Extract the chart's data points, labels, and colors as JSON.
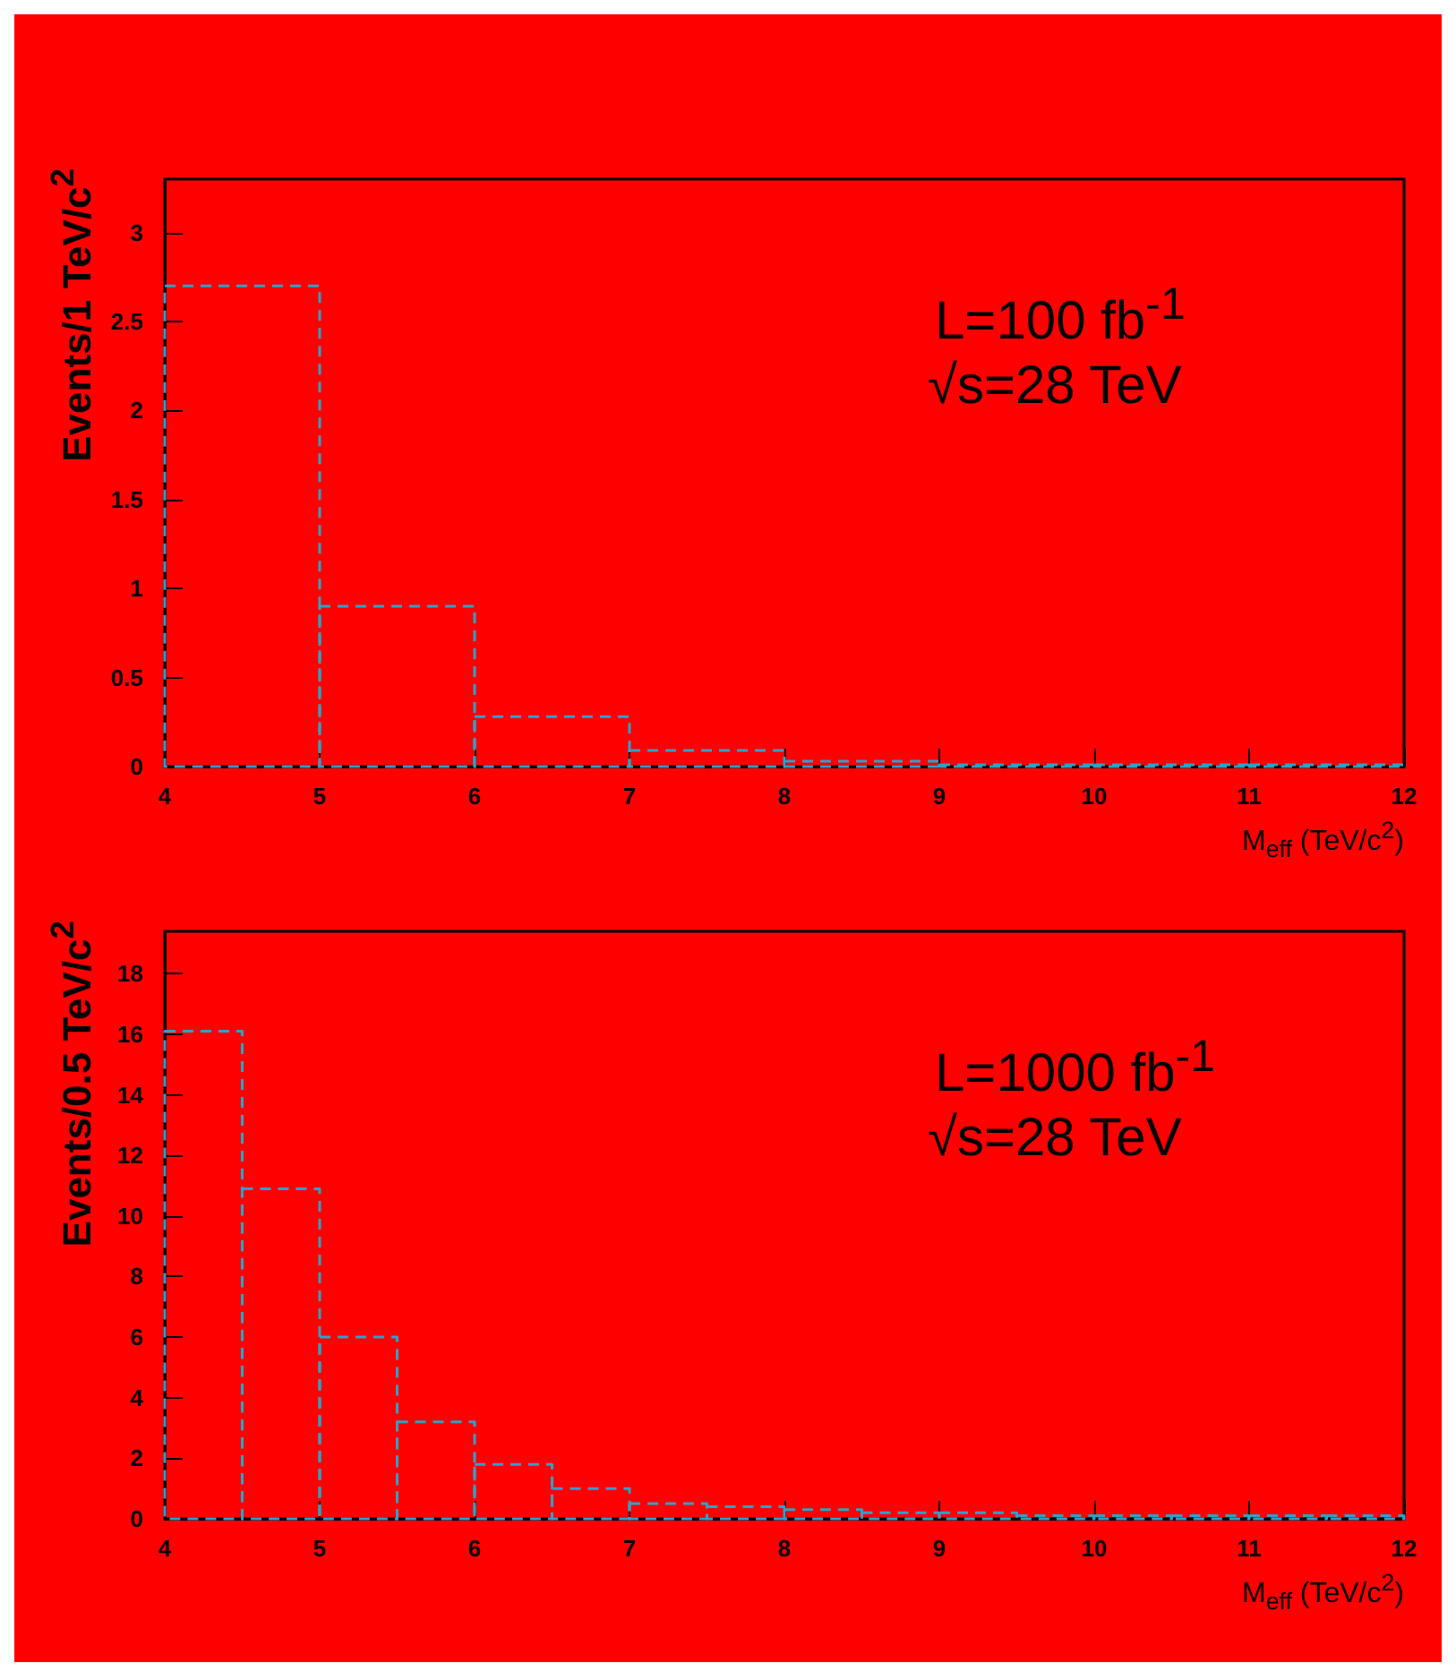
{
  "chart_data": [
    {
      "type": "histogram",
      "xlabel": "M$_{eff}$ (TeV/c$^{2}$)",
      "ylabel": "Events/1 TeV/c$^{2}$",
      "annotations": [
        "L=100 fb$^{-1}$",
        "√s=28 TeV"
      ],
      "bins": [
        4,
        5,
        6,
        7,
        8,
        9,
        10,
        11,
        12
      ],
      "values": [
        2.7,
        0.9,
        0.28,
        0.09,
        0.03,
        0.01,
        0.01,
        0.01
      ],
      "color": "#2aa3c9",
      "line_style": "dashed",
      "xlim": [
        4,
        12
      ],
      "xticks": [
        4,
        5,
        6,
        7,
        8,
        9,
        10,
        11,
        12
      ],
      "ylim": [
        0,
        3.3
      ],
      "yticks": [
        0,
        0.5,
        1,
        1.5,
        2,
        2.5,
        3
      ]
    },
    {
      "type": "histogram",
      "xlabel": "M$_{eff}$ (TeV/c$^{2}$)",
      "ylabel": "Events/0.5 TeV/c$^{2}$",
      "annotations": [
        "L=1000 fb$^{-1}$",
        "√s=28 TeV"
      ],
      "bins": [
        4,
        4.5,
        5,
        5.5,
        6,
        6.5,
        7,
        7.5,
        8,
        8.5,
        9,
        9.5,
        10,
        10.5,
        11,
        11.5,
        12
      ],
      "values": [
        16.1,
        10.9,
        6,
        3.2,
        1.8,
        1,
        0.5,
        0.4,
        0.3,
        0.2,
        0.2,
        0.1,
        0.1,
        0.1,
        0.1,
        0.1
      ],
      "color": "#2aa3c9",
      "line_style": "dashed",
      "xlim": [
        4,
        12
      ],
      "xticks": [
        4,
        5,
        6,
        7,
        8,
        9,
        10,
        11,
        12
      ],
      "ylim": [
        0,
        19.4
      ],
      "yticks": [
        0,
        2,
        4,
        6,
        8,
        10,
        12,
        14,
        16,
        18
      ]
    }
  ]
}
